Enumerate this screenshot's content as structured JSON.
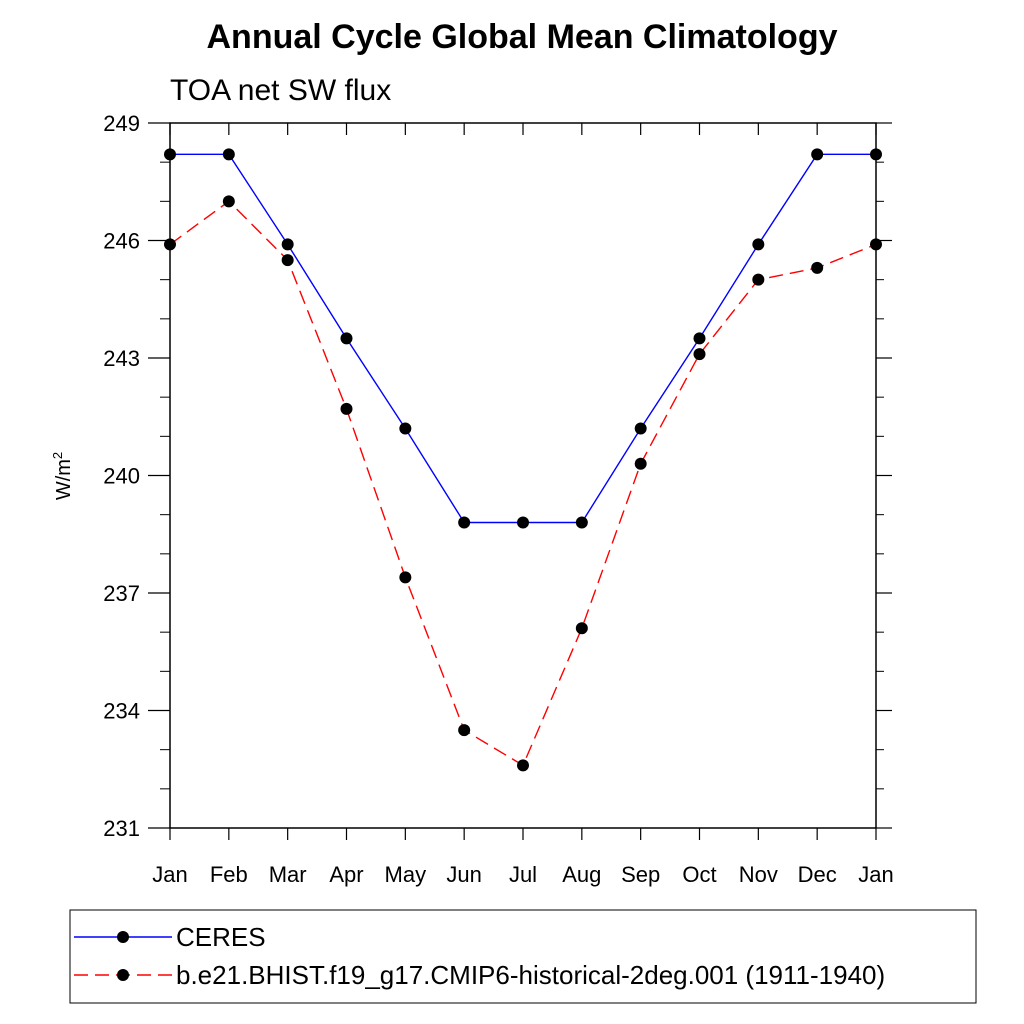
{
  "chart_data": {
    "type": "line",
    "title": "Annual Cycle Global Mean Climatology",
    "subtitle": "TOA net SW flux",
    "xlabel": "",
    "ylabel_base": "W/m",
    "ylabel_sup": "2",
    "categories": [
      "Jan",
      "Feb",
      "Mar",
      "Apr",
      "May",
      "Jun",
      "Jul",
      "Aug",
      "Sep",
      "Oct",
      "Nov",
      "Dec",
      "Jan"
    ],
    "ylim": [
      231,
      249
    ],
    "yticks": [
      231,
      234,
      237,
      240,
      243,
      246,
      249
    ],
    "grid": false,
    "legend_position": "bottom",
    "series": [
      {
        "name": "CERES",
        "color": "#0000ff",
        "dash": "solid",
        "marker": "filled-circle",
        "values": [
          248.2,
          248.2,
          245.9,
          243.5,
          241.2,
          238.8,
          238.8,
          238.8,
          241.2,
          243.5,
          245.9,
          248.2,
          248.2
        ]
      },
      {
        "name": "b.e21.BHIST.f19_g17.CMIP6-historical-2deg.001 (1911-1940)",
        "color": "#ff0000",
        "dash": "dashed",
        "marker": "filled-circle",
        "values": [
          245.9,
          247.0,
          245.5,
          241.7,
          237.4,
          233.5,
          232.6,
          236.1,
          240.3,
          243.1,
          245.0,
          245.3,
          245.9
        ]
      }
    ]
  }
}
